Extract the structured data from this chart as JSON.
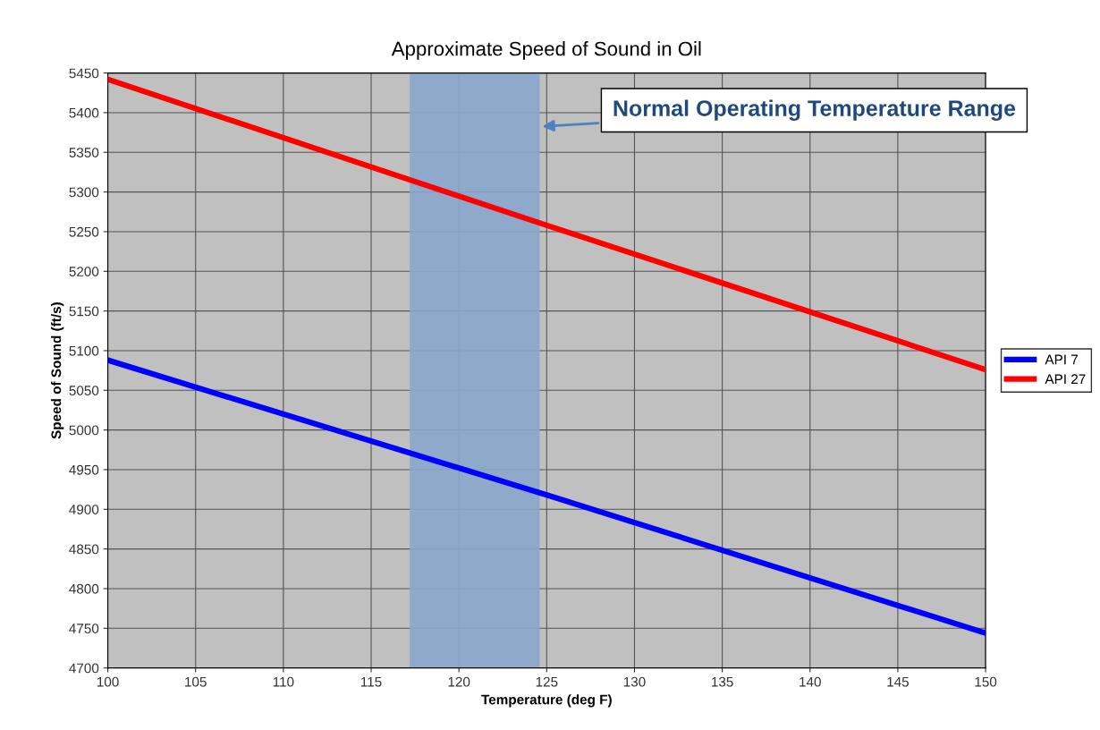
{
  "chart_data": {
    "type": "line",
    "title": "Approximate Speed of Sound in Oil",
    "xlabel": "Temperature (deg F)",
    "ylabel": "Speed of Sound (ft/s)",
    "x": [
      100,
      125,
      150
    ],
    "series": [
      {
        "name": "API 7",
        "color": "#0000ff",
        "values": [
          5088,
          4918,
          4744
        ]
      },
      {
        "name": "API 27",
        "color": "#ff0000",
        "values": [
          5442,
          5258,
          5076
        ]
      }
    ],
    "xlim": [
      100,
      150
    ],
    "xticks": [
      100,
      105,
      110,
      115,
      120,
      125,
      130,
      135,
      140,
      145,
      150
    ],
    "ylim": [
      4700,
      5450
    ],
    "yticks": [
      4700,
      4750,
      4800,
      4850,
      4900,
      4950,
      5000,
      5050,
      5100,
      5150,
      5200,
      5250,
      5300,
      5350,
      5400,
      5450
    ],
    "bands": [
      {
        "axis": "x",
        "from": 117.2,
        "to": 124.6,
        "label": "Normal Operating Temperature Range",
        "color": "#8aa6cc"
      }
    ],
    "grid": true,
    "legend": "right",
    "marker": "none",
    "line_style": "solid"
  }
}
